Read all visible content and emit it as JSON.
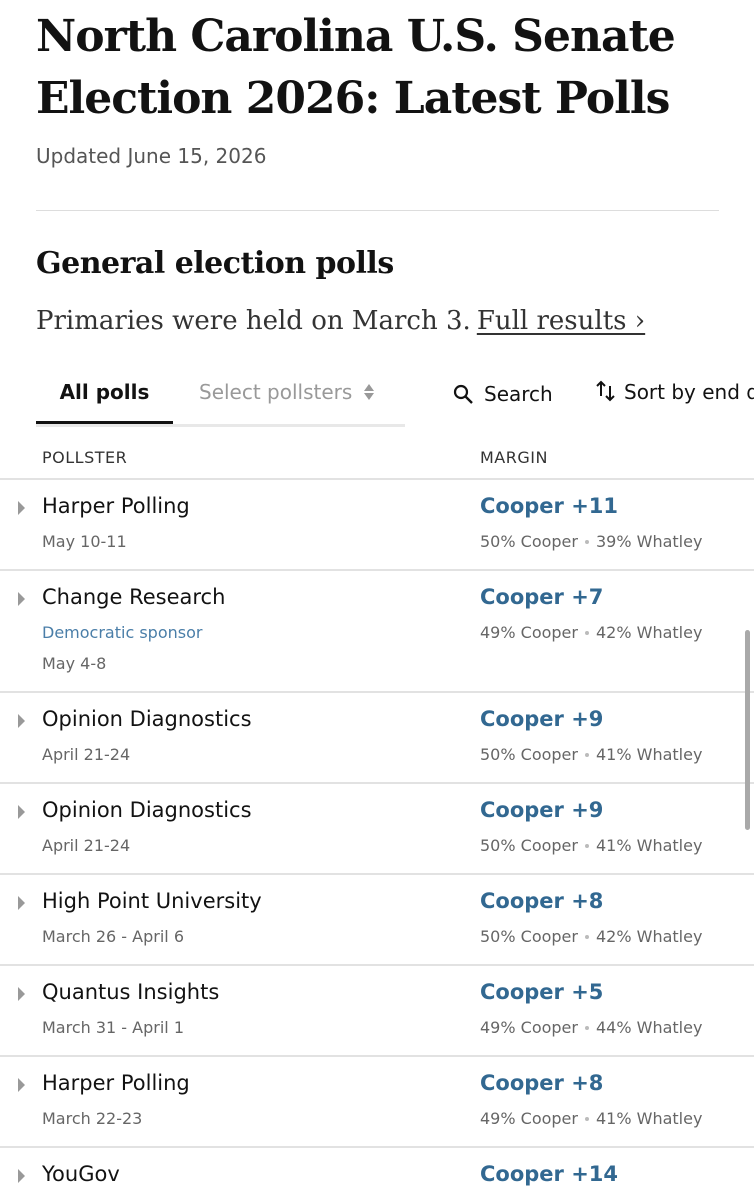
{
  "header": {
    "title": "North Carolina U.S. Senate Election 2026: Latest Polls",
    "updated": "Updated June 15, 2026"
  },
  "section": {
    "heading": "General election polls",
    "subtitle": "Primaries were held on March 3.",
    "link": "Full results ›"
  },
  "toolbar": {
    "tabs": [
      "All polls",
      "Select pollsters"
    ],
    "search": "Search",
    "sort": "Sort by end date"
  },
  "table": {
    "columns": [
      "POLLSTER",
      "MARGIN"
    ],
    "rows": [
      {
        "pollster": "Harper Polling",
        "dates": "May 10-11",
        "margin": "Cooper +11",
        "first": "50% Cooper",
        "second": "39% Whatley"
      },
      {
        "pollster": "Change Research",
        "sponsor": "Democratic sponsor",
        "dates": "May 4-8",
        "margin": "Cooper +7",
        "first": "49% Cooper",
        "second": "42% Whatley"
      },
      {
        "pollster": "Opinion Diagnostics",
        "dates": "April 21-24",
        "margin": "Cooper +9",
        "first": "50% Cooper",
        "second": "41% Whatley"
      },
      {
        "pollster": "Opinion Diagnostics",
        "dates": "April 21-24",
        "margin": "Cooper +9",
        "first": "50% Cooper",
        "second": "41% Whatley"
      },
      {
        "pollster": "High Point University",
        "dates": "March 26 - April 6",
        "margin": "Cooper +8",
        "first": "50% Cooper",
        "second": "42% Whatley"
      },
      {
        "pollster": "Quantus Insights",
        "dates": "March 31 - April 1",
        "margin": "Cooper +5",
        "first": "49% Cooper",
        "second": "44% Whatley"
      },
      {
        "pollster": "Harper Polling",
        "dates": "March 22-23",
        "margin": "Cooper +8",
        "first": "49% Cooper",
        "second": "41% Whatley"
      },
      {
        "pollster": "YouGov",
        "margin": "Cooper +14"
      }
    ]
  }
}
